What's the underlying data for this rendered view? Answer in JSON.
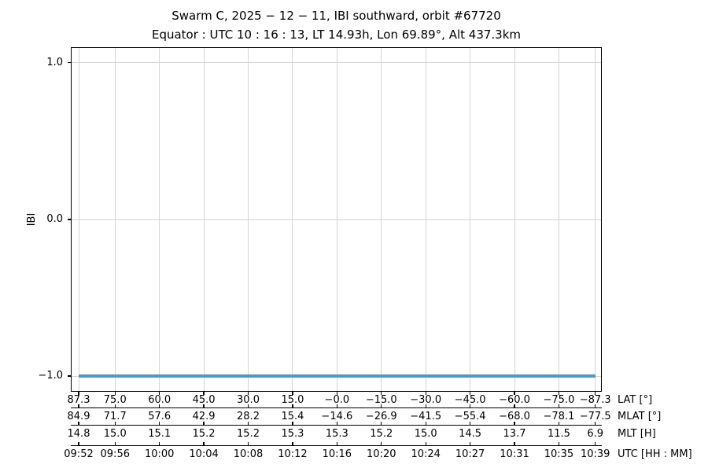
{
  "colors": {
    "line": "#4f97c7",
    "grid": "#d4d4d4",
    "axis": "#000000",
    "background": "#ffffff",
    "text": "#000000"
  },
  "chart_data": {
    "type": "line",
    "title": "Swarm C,  2025 − 12 − 11,  IBI southward,  orbit #67720",
    "subtitle": "Equator :  UTC 10 : 16 : 13,  LT 14.93h,  Lon 69.89°,  Alt 437.3km",
    "ylabel": "IBI",
    "ylim": [
      -1.1,
      1.1
    ],
    "grid": true,
    "legend": "none",
    "yticks": [
      {
        "value": 1.0,
        "label": "1.0"
      },
      {
        "value": 0.0,
        "label": "0.0"
      },
      {
        "value": -1.0,
        "label": "−1.0"
      }
    ],
    "x_tick_lat_values": [
      87.3,
      75.0,
      60.0,
      45.0,
      30.0,
      15.0,
      0.0,
      -15.0,
      -30.0,
      -45.0,
      -60.0,
      -75.0,
      -87.3
    ],
    "series": [
      {
        "name": "IBI",
        "color": "#4f97c7",
        "constant_y": -1.0,
        "x_start_lat": 87.3,
        "x_end_lat": -87.3
      }
    ],
    "x_axis_rows": [
      {
        "label": "LAT [°]",
        "values": [
          "87.3",
          "75.0",
          "60.0",
          "45.0",
          "30.0",
          "15.0",
          "−0.0",
          "−15.0",
          "−30.0",
          "−45.0",
          "−60.0",
          "−75.0",
          "−87.3"
        ]
      },
      {
        "label": "MLAT [°]",
        "values": [
          "84.9",
          "71.7",
          "57.6",
          "42.9",
          "28.2",
          "15.4",
          "−14.6",
          "−26.9",
          "−41.5",
          "−55.4",
          "−68.0",
          "−78.1",
          "−77.5"
        ]
      },
      {
        "label": "MLT [H]",
        "values": [
          "14.8",
          "15.0",
          "15.1",
          "15.2",
          "15.2",
          "15.3",
          "15.3",
          "15.2",
          "15.0",
          "14.5",
          "13.7",
          "11.5",
          "6.9"
        ]
      },
      {
        "label": "UTC [HH : MM]",
        "values": [
          "09:52",
          "09:56",
          "10:00",
          "10:04",
          "10:08",
          "10:12",
          "10:16",
          "10:20",
          "10:24",
          "10:27",
          "10:31",
          "10:35",
          "10:39"
        ]
      }
    ]
  }
}
